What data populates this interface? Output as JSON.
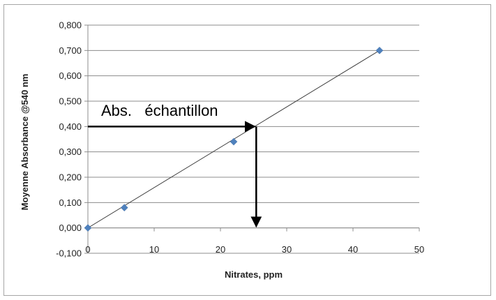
{
  "chart_data": {
    "type": "scatter",
    "title": "",
    "xlabel": "Nitrates, ppm",
    "ylabel": "Moyenne Absorbance @540 nm",
    "xlim": [
      0,
      50
    ],
    "ylim": [
      -0.1,
      0.8
    ],
    "x_ticks": [
      0,
      10,
      20,
      30,
      40,
      50
    ],
    "y_ticks": [
      -0.1,
      0.0,
      0.1,
      0.2,
      0.3,
      0.4,
      0.5,
      0.6,
      0.7,
      0.8
    ],
    "x_tick_labels": [
      "0",
      "10",
      "20",
      "30",
      "40",
      "50"
    ],
    "y_tick_labels": [
      "-0,100",
      "0,000",
      "0,100",
      "0,200",
      "0,300",
      "0,400",
      "0,500",
      "0,600",
      "0,700",
      "0,800"
    ],
    "grid": "horizontal",
    "legend": "none",
    "series": [
      {
        "marker": "diamond",
        "color": "#4f81bd",
        "points": [
          {
            "x": 0,
            "y": 0.0
          },
          {
            "x": 5.5,
            "y": 0.08
          },
          {
            "x": 22,
            "y": 0.34
          },
          {
            "x": 44,
            "y": 0.7
          }
        ]
      }
    ],
    "trendline": {
      "x0": 0,
      "y0": 0.0,
      "x1": 44,
      "y1": 0.7,
      "color": "#404040"
    },
    "annotation": {
      "text": "Abs.   échantillon",
      "sample_absorbance": 0.4,
      "sample_concentration": 25.4,
      "color": "#000000"
    }
  }
}
